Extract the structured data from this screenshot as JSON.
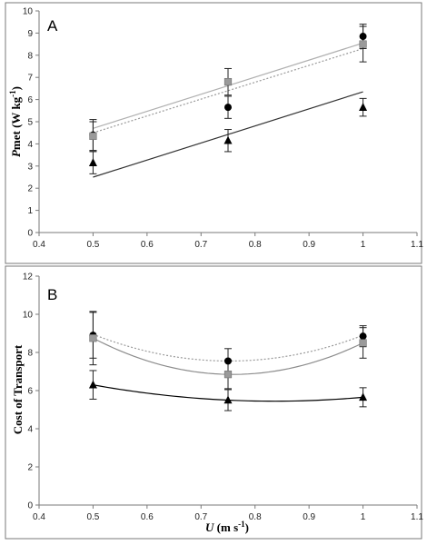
{
  "chart_data": [
    {
      "type": "scatter",
      "panel_label": "A",
      "ylabel_prefix": "P",
      "ylabel_suffix": "met (W kg",
      "ylabel_exp": "-1",
      "ylabel_close": ")",
      "xlabel": "",
      "xlim": [
        0.4,
        1.1
      ],
      "ylim": [
        0,
        10
      ],
      "xticks": [
        0.4,
        0.5,
        0.6,
        0.7,
        0.8,
        0.9,
        1,
        1.1
      ],
      "xtick_labels": [
        "0.4",
        "0.5",
        "0.6",
        "0.7",
        "0.8",
        "0.9",
        "1",
        "1.1"
      ],
      "yticks": [
        0,
        1,
        2,
        3,
        4,
        5,
        6,
        7,
        8,
        9,
        10
      ],
      "ytick_labels": [
        "0",
        "1",
        "2",
        "3",
        "4",
        "5",
        "6",
        "7",
        "8",
        "9",
        "10"
      ],
      "grid": false,
      "series": [
        {
          "marker": "circle",
          "color": "#000000",
          "x": [
            0.5,
            0.75,
            1
          ],
          "y": [
            4.4,
            5.65,
            8.85
          ],
          "err": [
            0.7,
            0.5,
            0.55
          ],
          "fit": {
            "kind": "line",
            "style": "dotted",
            "color": "#9a9a9a",
            "x": [
              0.5,
              1
            ],
            "y": [
              4.5,
              8.3
            ]
          }
        },
        {
          "marker": "square",
          "color": "#9a9a9a",
          "x": [
            0.5,
            0.75,
            1
          ],
          "y": [
            4.35,
            6.8,
            8.5
          ],
          "err": [
            0.65,
            0.6,
            0.8
          ],
          "fit": {
            "kind": "line",
            "style": "solid",
            "color": "#b0b0b0",
            "x": [
              0.5,
              1
            ],
            "y": [
              4.7,
              8.55
            ]
          }
        },
        {
          "marker": "triangle",
          "color": "#000000",
          "x": [
            0.5,
            0.75,
            1
          ],
          "y": [
            3.15,
            4.15,
            5.65
          ],
          "err": [
            0.5,
            0.5,
            0.4
          ],
          "fit": {
            "kind": "line",
            "style": "solid",
            "color": "#333333",
            "x": [
              0.5,
              1
            ],
            "y": [
              2.5,
              6.35
            ]
          }
        }
      ]
    },
    {
      "type": "scatter",
      "panel_label": "B",
      "ylabel": "Cost of Transport",
      "xlabel_prefix": "U",
      "xlabel_suffix": " (m s",
      "xlabel_exp": "-1",
      "xlabel_close": ")",
      "xlim": [
        0.4,
        1.1
      ],
      "ylim": [
        0,
        12
      ],
      "xticks": [
        0.4,
        0.5,
        0.6,
        0.7,
        0.8,
        0.9,
        1,
        1.1
      ],
      "xtick_labels": [
        "0.4",
        "0.5",
        "0.6",
        "0.7",
        "0.8",
        "0.9",
        "1",
        "1.1"
      ],
      "yticks": [
        0,
        2,
        4,
        6,
        8,
        10,
        12
      ],
      "ytick_labels": [
        "0",
        "2",
        "4",
        "6",
        "8",
        "10",
        "12"
      ],
      "grid": false,
      "series": [
        {
          "marker": "circle",
          "color": "#000000",
          "x": [
            0.5,
            0.75,
            1
          ],
          "y": [
            8.9,
            7.55,
            8.85
          ],
          "err": [
            1.2,
            0.65,
            0.55
          ],
          "fit": {
            "kind": "quadratic",
            "style": "dotted",
            "color": "#9a9a9a",
            "x": [
              0.5,
              0.75,
              1
            ],
            "y": [
              8.95,
              7.55,
              8.9
            ]
          }
        },
        {
          "marker": "square",
          "color": "#9a9a9a",
          "x": [
            0.5,
            0.75,
            1
          ],
          "y": [
            8.75,
            6.85,
            8.5
          ],
          "err": [
            1.4,
            0.75,
            0.8
          ],
          "fit": {
            "kind": "quadratic",
            "style": "solid",
            "color": "#8c8c8c",
            "x": [
              0.5,
              0.75,
              1
            ],
            "y": [
              8.75,
              6.85,
              8.5
            ]
          }
        },
        {
          "marker": "triangle",
          "color": "#000000",
          "x": [
            0.5,
            0.75,
            1
          ],
          "y": [
            6.3,
            5.5,
            5.65
          ],
          "err": [
            0.75,
            0.55,
            0.5
          ],
          "fit": {
            "kind": "quadratic",
            "style": "solid",
            "color": "#000000",
            "x": [
              0.5,
              0.75,
              1
            ],
            "y": [
              6.3,
              5.5,
              5.65
            ]
          }
        }
      ]
    }
  ]
}
